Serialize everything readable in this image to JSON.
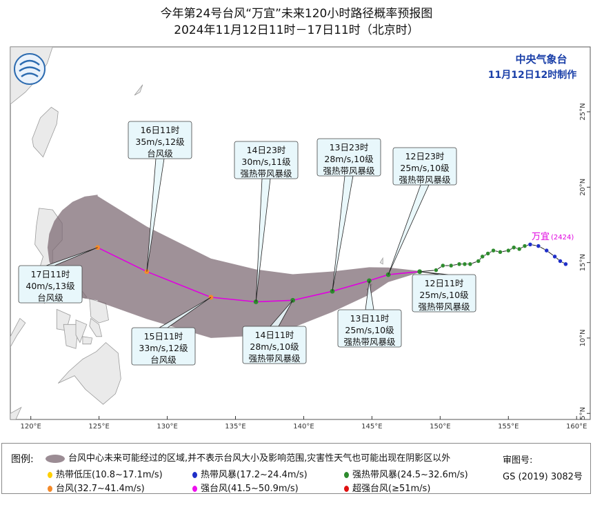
{
  "header": {
    "title_line1": "今年第24号台风“万宜”未来120小时路径概率预报图",
    "title_line2": "2024年11月12日11时－17日11时（北京时）"
  },
  "agency": {
    "name": "中央气象台",
    "issued": "11月12日12时制作"
  },
  "typhoon_label": "万宜",
  "typhoon_code": "(2424)",
  "colors": {
    "land": "#eaeaea",
    "coast": "#9a9a9a",
    "track_forecast": "#e000e0",
    "cone": "#7a6670",
    "tropical_depression": "#ffd000",
    "tropical_storm": "#1f2fc8",
    "severe_tropical_storm": "#2e8b2e",
    "typhoon": "#f48a2a",
    "severe_typhoon": "#ee10ee",
    "super_typhoon": "#e01010"
  },
  "chart_data": {
    "type": "map-track",
    "xlim": [
      118.5,
      161
    ],
    "ylim": [
      4.6,
      29.3
    ],
    "x_ticks": [
      {
        "value": 120,
        "label": "120°E"
      },
      {
        "value": 125,
        "label": "125°E"
      },
      {
        "value": 130,
        "label": "130°E"
      },
      {
        "value": 135,
        "label": "135°E"
      },
      {
        "value": 140,
        "label": "140°E"
      },
      {
        "value": 145,
        "label": "145°E"
      },
      {
        "value": 150,
        "label": "150°E"
      },
      {
        "value": 155,
        "label": "155°E"
      },
      {
        "value": 160,
        "label": "160°E"
      }
    ],
    "y_ticks": [
      {
        "value": 5,
        "label": "5°N"
      },
      {
        "value": 10,
        "label": "10°N"
      },
      {
        "value": 15,
        "label": "15°N"
      },
      {
        "value": 20,
        "label": "20°N"
      },
      {
        "value": 25,
        "label": "25°N"
      }
    ],
    "past_track": [
      {
        "lon": 159.2,
        "lat": 14.9,
        "cat": "tropical_storm"
      },
      {
        "lon": 158.8,
        "lat": 15.1,
        "cat": "tropical_storm"
      },
      {
        "lon": 158.4,
        "lat": 15.4,
        "cat": "tropical_storm"
      },
      {
        "lon": 157.8,
        "lat": 15.8,
        "cat": "tropical_storm"
      },
      {
        "lon": 157.2,
        "lat": 16.1,
        "cat": "tropical_storm"
      },
      {
        "lon": 156.6,
        "lat": 16.2,
        "cat": "tropical_storm"
      },
      {
        "lon": 156.2,
        "lat": 16.1,
        "cat": "severe_tropical_storm"
      },
      {
        "lon": 155.8,
        "lat": 15.9,
        "cat": "severe_tropical_storm"
      },
      {
        "lon": 155.4,
        "lat": 16.0,
        "cat": "severe_tropical_storm"
      },
      {
        "lon": 155.0,
        "lat": 15.8,
        "cat": "severe_tropical_storm"
      },
      {
        "lon": 154.4,
        "lat": 15.7,
        "cat": "severe_tropical_storm"
      },
      {
        "lon": 153.9,
        "lat": 15.8,
        "cat": "severe_tropical_storm"
      },
      {
        "lon": 153.5,
        "lat": 15.6,
        "cat": "severe_tropical_storm"
      },
      {
        "lon": 153.1,
        "lat": 15.4,
        "cat": "severe_tropical_storm"
      },
      {
        "lon": 152.8,
        "lat": 15.1,
        "cat": "severe_tropical_storm"
      },
      {
        "lon": 152.2,
        "lat": 14.9,
        "cat": "severe_tropical_storm"
      },
      {
        "lon": 151.8,
        "lat": 14.9,
        "cat": "severe_tropical_storm"
      },
      {
        "lon": 151.4,
        "lat": 14.9,
        "cat": "severe_tropical_storm"
      },
      {
        "lon": 150.8,
        "lat": 14.8,
        "cat": "severe_tropical_storm"
      },
      {
        "lon": 150.2,
        "lat": 14.8,
        "cat": "severe_tropical_storm"
      },
      {
        "lon": 149.7,
        "lat": 14.5,
        "cat": "severe_tropical_storm"
      },
      {
        "lon": 148.5,
        "lat": 14.4,
        "cat": "severe_tropical_storm"
      }
    ],
    "forecast": [
      {
        "time": "12日11时",
        "lon": 148.5,
        "lat": 14.4,
        "cat": "severe_tropical_storm",
        "lines": [
          "12日11时",
          "25m/s,10级",
          "强热带风暴级"
        ],
        "box": "below"
      },
      {
        "time": "12日23时",
        "lon": 146.2,
        "lat": 14.2,
        "cat": "severe_tropical_storm",
        "lines": [
          "12日23时",
          "25m/s,10级",
          "强热带风暴级"
        ],
        "box": "above"
      },
      {
        "time": "13日11时",
        "lon": 144.8,
        "lat": 13.8,
        "cat": "severe_tropical_storm",
        "lines": [
          "13日11时",
          "25m/s,10级",
          "强热带风暴级"
        ],
        "box": "below"
      },
      {
        "time": "13日23时",
        "lon": 142.1,
        "lat": 13.1,
        "cat": "severe_tropical_storm",
        "lines": [
          "13日23时",
          "28m/s,10级",
          "强热带风暴级"
        ],
        "box": "above"
      },
      {
        "time": "14日11时",
        "lon": 139.2,
        "lat": 12.5,
        "cat": "severe_tropical_storm",
        "lines": [
          "14日11时",
          "28m/s,10级",
          "强热带风暴级"
        ],
        "box": "below"
      },
      {
        "time": "14日23时",
        "lon": 136.5,
        "lat": 12.4,
        "cat": "severe_tropical_storm",
        "lines": [
          "14日23时",
          "30m/s,11级",
          "强热带风暴级"
        ],
        "box": "above"
      },
      {
        "time": "15日11时",
        "lon": 133.2,
        "lat": 12.7,
        "cat": "typhoon",
        "lines": [
          "15日11时",
          "33m/s,12级",
          "台风级"
        ],
        "box": "below"
      },
      {
        "time": "16日11时",
        "lon": 128.5,
        "lat": 14.4,
        "cat": "typhoon",
        "lines": [
          "16日11时",
          "35m/s,12级",
          "台风级"
        ],
        "box": "above"
      },
      {
        "time": "17日11时",
        "lon": 124.9,
        "lat": 16.0,
        "cat": "typhoon",
        "lines": [
          "17日11时",
          "40m/s,13级",
          "台风级"
        ],
        "box": "below"
      }
    ]
  },
  "legend": {
    "title": "图例:",
    "cone_text": "台风中心未来可能经过的区域,并不表示台风大小及影响范围,灾害性天气也可能出现在阴影区以外",
    "items": [
      {
        "cat": "tropical_depression",
        "label": "热带低压(10.8~17.1m/s)"
      },
      {
        "cat": "tropical_storm",
        "label": "热带风暴(17.2~24.4m/s)"
      },
      {
        "cat": "severe_tropical_storm",
        "label": "强热带风暴(24.5~32.6m/s)"
      },
      {
        "cat": "typhoon",
        "label": "台风(32.7~41.4m/s)"
      },
      {
        "cat": "severe_typhoon",
        "label": "强台风(41.5~50.9m/s)"
      },
      {
        "cat": "super_typhoon",
        "label": "超强台风(≥51m/s)"
      }
    ],
    "approval_label": "审图号:",
    "approval_number": "GS (2019) 3082号"
  }
}
